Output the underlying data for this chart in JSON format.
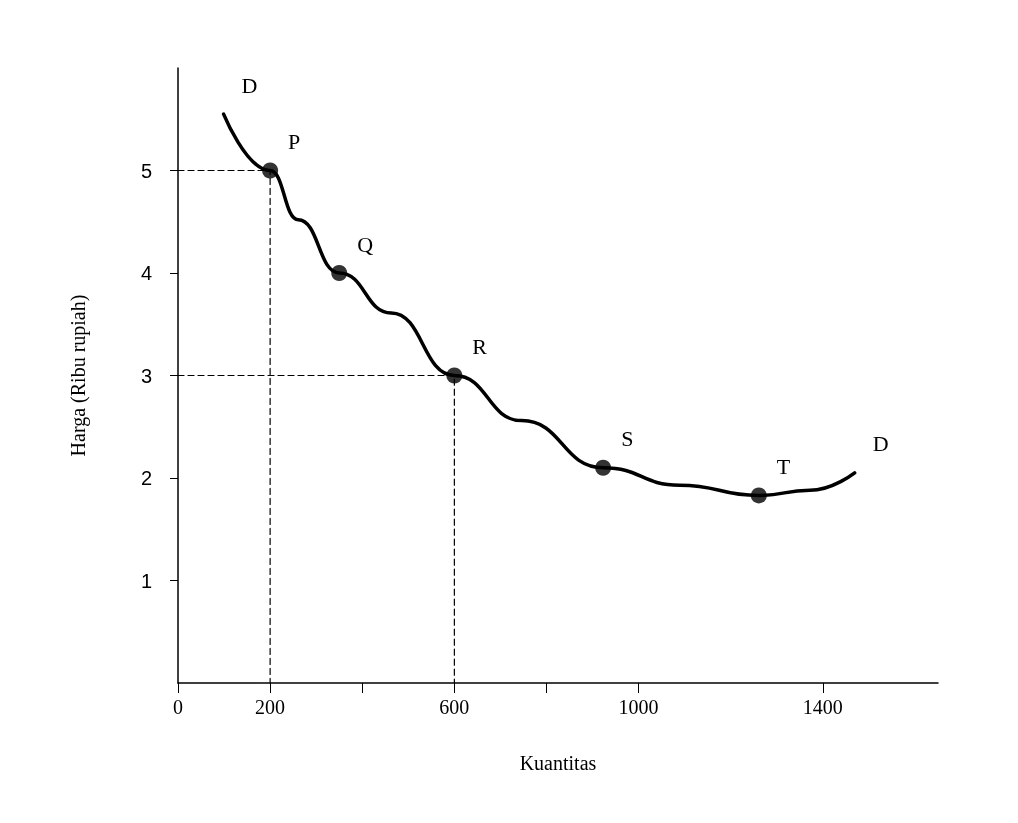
{
  "chart_data": {
    "type": "line",
    "xlabel": "Kuantitas",
    "ylabel": "Harga (Ribu rupiah)",
    "xlim": [
      0,
      1650
    ],
    "ylim": [
      0,
      6
    ],
    "xticks": [
      0,
      200,
      {
        "value": 400,
        "label": null
      },
      600,
      {
        "value": 800,
        "label": null
      },
      1000,
      1400
    ],
    "yticks": [
      1,
      2,
      3,
      4,
      5
    ],
    "grid": false,
    "series": [
      {
        "type": "line",
        "color": "#000000",
        "marker": "none",
        "x": [
          99,
          200,
          261,
          350,
          463,
          600,
          746,
          923,
          1089,
          1261,
          1372,
          1469
        ],
        "values": [
          5.55,
          5.0,
          4.52,
          4.0,
          3.61,
          3.0,
          2.56,
          2.1,
          1.93,
          1.83,
          1.88,
          2.05
        ]
      },
      {
        "type": "line",
        "color": "#000000",
        "marker": "none",
        "line_style": "dashed",
        "x": [
          0,
          200,
          200
        ],
        "values": [
          5,
          5,
          0
        ]
      },
      {
        "type": "line",
        "color": "#000000",
        "marker": "none",
        "line_style": "dashed",
        "x": [
          0,
          600,
          600
        ],
        "values": [
          3,
          3,
          0
        ]
      },
      {
        "type": "scatter",
        "color": "#000000",
        "marker": "circle",
        "x": [
          200,
          350,
          600,
          923,
          1261
        ],
        "values": [
          5,
          4,
          3,
          2.1,
          1.83
        ]
      }
    ],
    "annotations": [
      {
        "text": "D",
        "x": 99,
        "y": 5.55
      },
      {
        "text": "P",
        "x": 200,
        "y": 5
      },
      {
        "text": "Q",
        "x": 350,
        "y": 4
      },
      {
        "text": "R",
        "x": 600,
        "y": 3
      },
      {
        "text": "S",
        "x": 923,
        "y": 2.1
      },
      {
        "text": "T",
        "x": 1261,
        "y": 1.83
      },
      {
        "text": "D",
        "x": 1469,
        "y": 2.05
      }
    ]
  }
}
